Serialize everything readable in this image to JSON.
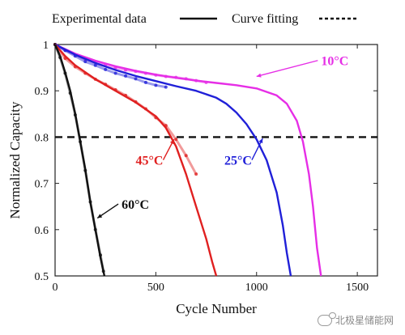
{
  "chart_data": {
    "type": "line",
    "xlabel": "Cycle Number",
    "ylabel": "Normalized Capacity",
    "xlim": [
      0,
      1600
    ],
    "ylim": [
      0.5,
      1.0
    ],
    "xticks": [
      0,
      500,
      1000,
      1500
    ],
    "yticks": [
      0.5,
      0.6,
      0.7,
      0.8,
      0.9,
      1.0
    ],
    "xtick_labels": [
      "0",
      "500",
      "1000",
      "1500"
    ],
    "ytick_labels": [
      "0.5",
      "0.6",
      "0.7",
      "0.8",
      "0.9",
      "1"
    ],
    "threshold": 0.8,
    "legend": {
      "position": "top",
      "entries": [
        {
          "label": "Experimental data",
          "style": "solid"
        },
        {
          "label": "Curve fitting",
          "style": "dashed"
        }
      ]
    },
    "series": [
      {
        "name": "10°C",
        "color": "#e62ee6",
        "fit_x": [
          0,
          100,
          200,
          300,
          400,
          500,
          600,
          700,
          800,
          900,
          1000,
          1100,
          1150,
          1200,
          1230,
          1260,
          1280,
          1300,
          1320
        ],
        "fit_y": [
          1.0,
          0.98,
          0.965,
          0.953,
          0.943,
          0.935,
          0.928,
          0.922,
          0.917,
          0.912,
          0.905,
          0.89,
          0.872,
          0.835,
          0.79,
          0.72,
          0.65,
          0.56,
          0.5
        ],
        "exp_x": [
          0,
          50,
          100,
          150,
          200,
          250,
          300,
          350,
          400,
          450,
          500,
          550,
          600,
          650,
          700,
          750
        ],
        "exp_y": [
          1.0,
          0.988,
          0.978,
          0.968,
          0.962,
          0.956,
          0.95,
          0.945,
          0.942,
          0.938,
          0.934,
          0.931,
          0.929,
          0.926,
          0.922,
          0.918
        ]
      },
      {
        "name": "25°C",
        "color": "#2020d8",
        "fit_x": [
          0,
          100,
          200,
          300,
          400,
          500,
          600,
          700,
          800,
          850,
          900,
          950,
          1000,
          1050,
          1100,
          1130,
          1150,
          1170
        ],
        "fit_y": [
          1.0,
          0.978,
          0.96,
          0.945,
          0.932,
          0.921,
          0.91,
          0.9,
          0.885,
          0.872,
          0.853,
          0.828,
          0.795,
          0.75,
          0.68,
          0.61,
          0.55,
          0.5
        ],
        "exp_x": [
          0,
          50,
          100,
          150,
          200,
          250,
          300,
          350,
          400,
          450,
          500,
          550
        ],
        "exp_y": [
          1.0,
          0.987,
          0.975,
          0.963,
          0.955,
          0.946,
          0.938,
          0.932,
          0.926,
          0.918,
          0.912,
          0.908
        ]
      },
      {
        "name": "45°C",
        "color": "#e02020",
        "fit_x": [
          0,
          50,
          100,
          200,
          300,
          400,
          500,
          550,
          600,
          650,
          700,
          750,
          780,
          800
        ],
        "fit_y": [
          1.0,
          0.975,
          0.955,
          0.925,
          0.9,
          0.875,
          0.845,
          0.82,
          0.78,
          0.72,
          0.65,
          0.58,
          0.53,
          0.5
        ],
        "exp_x": [
          0,
          50,
          100,
          150,
          200,
          250,
          300,
          350,
          400,
          450,
          500,
          550,
          600,
          650,
          700
        ],
        "exp_y": [
          1.0,
          0.97,
          0.952,
          0.938,
          0.925,
          0.914,
          0.902,
          0.89,
          0.876,
          0.861,
          0.842,
          0.825,
          0.795,
          0.76,
          0.72
        ]
      },
      {
        "name": "60°C",
        "color": "#111111",
        "fit_x": [
          0,
          25,
          50,
          75,
          100,
          125,
          150,
          175,
          200,
          225,
          245
        ],
        "fit_y": [
          1.0,
          0.975,
          0.94,
          0.9,
          0.85,
          0.79,
          0.73,
          0.66,
          0.6,
          0.54,
          0.5
        ],
        "exp_x": [
          0,
          25,
          50,
          75,
          100,
          125,
          150,
          175,
          200,
          225,
          240
        ],
        "exp_y": [
          1.0,
          0.972,
          0.938,
          0.895,
          0.848,
          0.79,
          0.728,
          0.66,
          0.6,
          0.545,
          0.51
        ]
      }
    ],
    "annotations": [
      {
        "text": "10°C",
        "series": "10°C",
        "color": "#e62ee6",
        "text_x": 1320,
        "text_y": 0.955,
        "arrow_to_x": 1000,
        "arrow_to_y": 0.931
      },
      {
        "text": "25°C",
        "series": "25°C",
        "color": "#2020d8",
        "text_x": 840,
        "text_y": 0.74,
        "arrow_to_x": 1030,
        "arrow_to_y": 0.797
      },
      {
        "text": "45°C",
        "series": "45°C",
        "color": "#e02020",
        "text_x": 400,
        "text_y": 0.74,
        "arrow_to_x": 590,
        "arrow_to_y": 0.795
      },
      {
        "text": "60°C",
        "series": "60°C",
        "color": "#111111",
        "text_x": 330,
        "text_y": 0.645,
        "arrow_to_x": 210,
        "arrow_to_y": 0.625
      }
    ]
  },
  "watermark": {
    "text": "北极星储能网"
  }
}
